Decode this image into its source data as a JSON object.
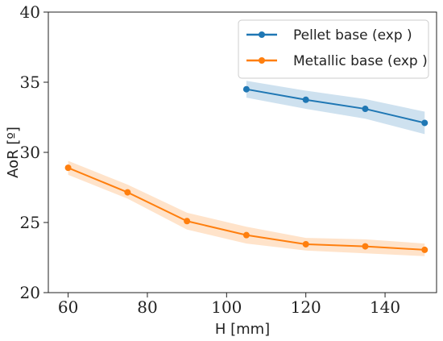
{
  "chart_data": {
    "type": "line",
    "title": "",
    "xlabel": "H [mm]",
    "ylabel": "AoR [º]",
    "xlim": [
      55,
      153
    ],
    "ylim": [
      20,
      40
    ],
    "xticks": [
      60,
      80,
      100,
      120,
      140
    ],
    "yticks": [
      20,
      25,
      30,
      35,
      40
    ],
    "grid": false,
    "legend_position": "top-right",
    "series": [
      {
        "name": "Pellet base (exp )",
        "color": "#1f77b4",
        "x": [
          105,
          120,
          135,
          150
        ],
        "y": [
          34.5,
          33.75,
          33.1,
          32.1
        ],
        "band_low": [
          33.9,
          33.1,
          32.4,
          31.3
        ],
        "band_high": [
          35.1,
          34.4,
          33.8,
          32.9
        ]
      },
      {
        "name": "Metallic base (exp )",
        "color": "#ff7f0e",
        "x": [
          60,
          75,
          90,
          105,
          120,
          135,
          150
        ],
        "y": [
          28.9,
          27.15,
          25.1,
          24.1,
          23.45,
          23.3,
          23.05
        ],
        "band_low": [
          28.4,
          26.7,
          24.5,
          23.5,
          23.0,
          22.8,
          22.6
        ],
        "band_high": [
          29.4,
          27.7,
          25.7,
          24.7,
          23.9,
          23.8,
          23.5
        ]
      }
    ]
  }
}
